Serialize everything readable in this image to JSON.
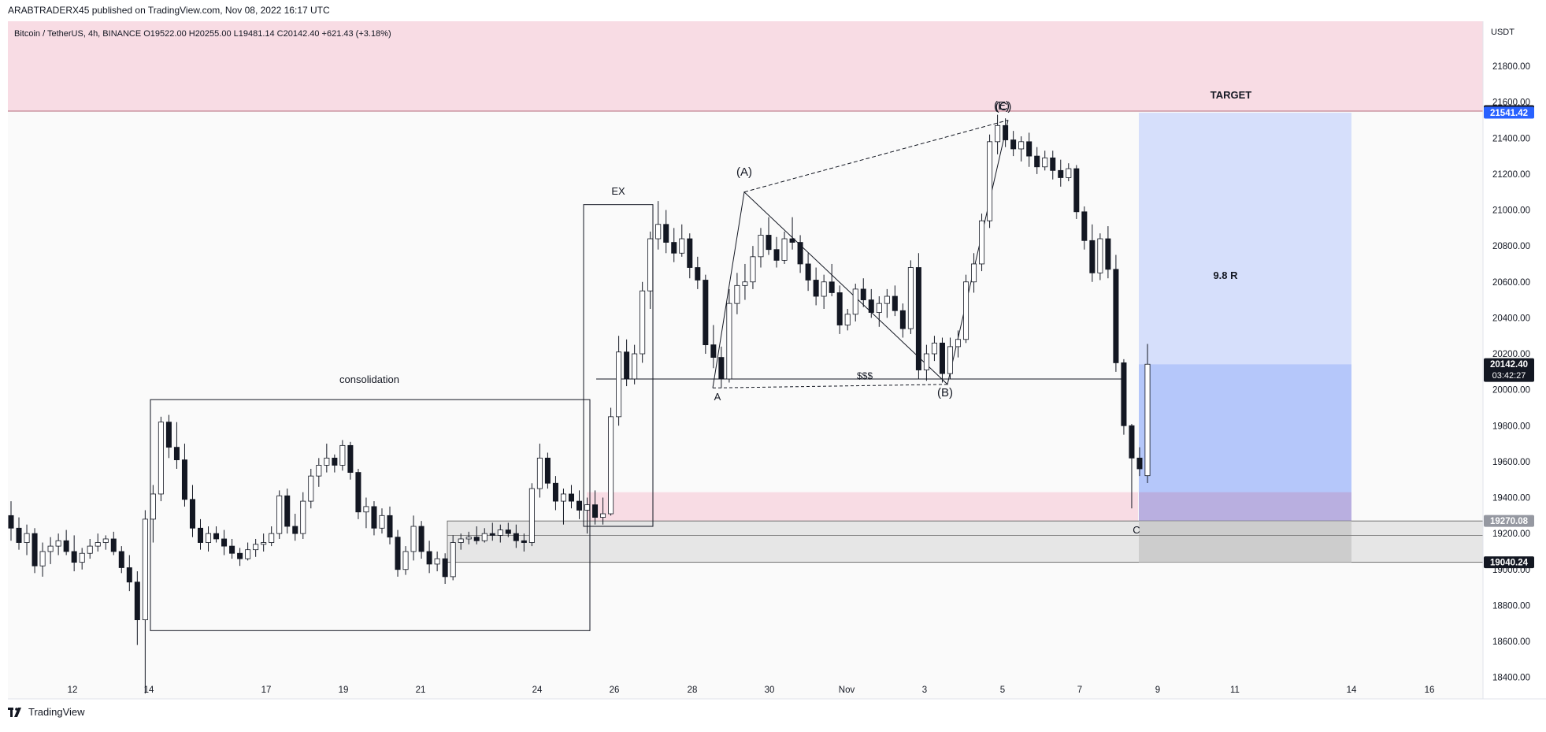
{
  "attribution": "ARABTRADERX45 published on TradingView.com, Nov 08, 2022 16:17 UTC",
  "symbol_line": "Bitcoin / TetherUS, 4h, BINANCE  O19522.00  H20255.00  L19481.14  C20142.40  +621.43 (+3.18%)",
  "footer_brand": "TradingView",
  "colors": {
    "up": "#ffffff",
    "down": "#131722",
    "pink_zone": "#f8dce4",
    "target_blue": "#d6dffb",
    "entry_blue": "#b5c7fa",
    "stop_grey": "#c8c8c8"
  },
  "chart_data": {
    "type": "candlestick",
    "title": "",
    "xlabel": "",
    "ylabel": "USDT",
    "ylim": [
      18280,
      22050
    ],
    "grid": false,
    "x_ticks": [
      "12",
      "14",
      "17",
      "19",
      "21",
      "24",
      "26",
      "28",
      "30",
      "Nov",
      "3",
      "5",
      "7",
      "9",
      "11",
      "14",
      "16"
    ],
    "y_ticks": [
      21800,
      21600,
      21400,
      21200,
      21000,
      20800,
      20600,
      20400,
      20200,
      20000,
      19800,
      19600,
      19400,
      19200,
      19000,
      18800,
      18600,
      18400
    ],
    "price_labels": [
      {
        "value": "21550.44",
        "style": "dark"
      },
      {
        "value": "21541.42",
        "style": "blue"
      },
      {
        "value": "20142.40",
        "sub": "03:42:27",
        "style": "dark"
      },
      {
        "value": "19270.08",
        "style": "grey"
      },
      {
        "value": "19040.24",
        "style": "dark"
      }
    ],
    "series": [
      {
        "candles": [
          [
            19300,
            19380,
            19160,
            19230
          ],
          [
            19230,
            19290,
            19110,
            19150
          ],
          [
            19150,
            19250,
            19080,
            19200
          ],
          [
            19200,
            19230,
            18980,
            19020
          ],
          [
            19020,
            19150,
            18960,
            19100
          ],
          [
            19100,
            19180,
            19030,
            19130
          ],
          [
            19130,
            19200,
            19080,
            19160
          ],
          [
            19160,
            19220,
            19080,
            19100
          ],
          [
            19100,
            19190,
            18990,
            19040
          ],
          [
            19040,
            19120,
            19000,
            19090
          ],
          [
            19090,
            19170,
            19060,
            19130
          ],
          [
            19130,
            19200,
            19100,
            19150
          ],
          [
            19150,
            19190,
            19110,
            19170
          ],
          [
            19170,
            19210,
            19080,
            19100
          ],
          [
            19100,
            19130,
            18980,
            19010
          ],
          [
            19010,
            19080,
            18880,
            18930
          ],
          [
            18930,
            18990,
            18580,
            18720
          ],
          [
            18720,
            19330,
            18310,
            19280
          ],
          [
            19280,
            19470,
            19150,
            19420
          ],
          [
            19420,
            19850,
            19380,
            19820
          ],
          [
            19820,
            19860,
            19620,
            19680
          ],
          [
            19680,
            19820,
            19560,
            19610
          ],
          [
            19610,
            19700,
            19350,
            19390
          ],
          [
            19390,
            19470,
            19180,
            19230
          ],
          [
            19230,
            19280,
            19110,
            19150
          ],
          [
            19150,
            19240,
            19100,
            19200
          ],
          [
            19200,
            19240,
            19150,
            19170
          ],
          [
            19170,
            19220,
            19080,
            19130
          ],
          [
            19130,
            19170,
            19060,
            19090
          ],
          [
            19090,
            19120,
            19020,
            19060
          ],
          [
            19060,
            19150,
            19050,
            19110
          ],
          [
            19110,
            19170,
            19070,
            19140
          ],
          [
            19140,
            19200,
            19100,
            19150
          ],
          [
            19150,
            19240,
            19130,
            19200
          ],
          [
            19200,
            19440,
            19170,
            19410
          ],
          [
            19410,
            19450,
            19200,
            19240
          ],
          [
            19240,
            19310,
            19160,
            19200
          ],
          [
            19200,
            19430,
            19170,
            19380
          ],
          [
            19380,
            19560,
            19340,
            19520
          ],
          [
            19520,
            19620,
            19460,
            19580
          ],
          [
            19580,
            19700,
            19540,
            19620
          ],
          [
            19620,
            19640,
            19540,
            19580
          ],
          [
            19580,
            19720,
            19550,
            19690
          ],
          [
            19690,
            19710,
            19500,
            19540
          ],
          [
            19540,
            19560,
            19280,
            19320
          ],
          [
            19320,
            19400,
            19230,
            19350
          ],
          [
            19350,
            19380,
            19190,
            19230
          ],
          [
            19230,
            19340,
            19200,
            19300
          ],
          [
            19300,
            19350,
            19140,
            19180
          ],
          [
            19180,
            19220,
            18960,
            19000
          ],
          [
            19000,
            19130,
            18970,
            19100
          ],
          [
            19100,
            19300,
            19050,
            19240
          ],
          [
            19240,
            19270,
            19060,
            19100
          ],
          [
            19100,
            19160,
            18980,
            19030
          ],
          [
            19030,
            19100,
            18990,
            19060
          ],
          [
            19060,
            19090,
            18920,
            18960
          ],
          [
            18960,
            19190,
            18940,
            19150
          ],
          [
            19150,
            19200,
            19110,
            19170
          ],
          [
            19170,
            19210,
            19140,
            19180
          ],
          [
            19180,
            19240,
            19140,
            19160
          ],
          [
            19160,
            19230,
            19150,
            19200
          ],
          [
            19200,
            19260,
            19160,
            19190
          ],
          [
            19190,
            19250,
            19150,
            19220
          ],
          [
            19220,
            19260,
            19180,
            19200
          ],
          [
            19200,
            19250,
            19120,
            19160
          ],
          [
            19160,
            19200,
            19100,
            19150
          ],
          [
            19150,
            19480,
            19130,
            19450
          ],
          [
            19450,
            19700,
            19400,
            19620
          ],
          [
            19620,
            19650,
            19450,
            19480
          ],
          [
            19480,
            19520,
            19330,
            19380
          ],
          [
            19380,
            19450,
            19250,
            19420
          ],
          [
            19420,
            19470,
            19340,
            19380
          ],
          [
            19380,
            19440,
            19280,
            19330
          ],
          [
            19330,
            19400,
            19200,
            19360
          ],
          [
            19360,
            19440,
            19250,
            19290
          ],
          [
            19290,
            19400,
            19250,
            19310
          ],
          [
            19310,
            19900,
            19300,
            19850
          ],
          [
            19850,
            20300,
            19800,
            20210
          ],
          [
            20210,
            20280,
            20020,
            20060
          ],
          [
            20060,
            20250,
            20030,
            20200
          ],
          [
            20200,
            20600,
            20150,
            20550
          ],
          [
            20550,
            20880,
            20450,
            20840
          ],
          [
            20840,
            21050,
            20780,
            20920
          ],
          [
            20920,
            21000,
            20760,
            20820
          ],
          [
            20820,
            20900,
            20710,
            20760
          ],
          [
            20760,
            20920,
            20740,
            20840
          ],
          [
            20840,
            20870,
            20620,
            20680
          ],
          [
            20680,
            20740,
            20560,
            20610
          ],
          [
            20610,
            20640,
            20200,
            20250
          ],
          [
            20250,
            20360,
            20120,
            20180
          ],
          [
            20180,
            20240,
            20010,
            20060
          ],
          [
            20060,
            20560,
            20040,
            20480
          ],
          [
            20480,
            20650,
            20420,
            20580
          ],
          [
            20580,
            20700,
            20500,
            20600
          ],
          [
            20600,
            20800,
            20560,
            20740
          ],
          [
            20740,
            20900,
            20680,
            20860
          ],
          [
            20860,
            20960,
            20750,
            20780
          ],
          [
            20780,
            20850,
            20680,
            20720
          ],
          [
            20720,
            20880,
            20700,
            20840
          ],
          [
            20840,
            20960,
            20780,
            20820
          ],
          [
            20820,
            20860,
            20650,
            20700
          ],
          [
            20700,
            20760,
            20550,
            20610
          ],
          [
            20610,
            20680,
            20470,
            20520
          ],
          [
            20520,
            20640,
            20450,
            20600
          ],
          [
            20600,
            20700,
            20520,
            20540
          ],
          [
            20540,
            20580,
            20310,
            20360
          ],
          [
            20360,
            20450,
            20330,
            20420
          ],
          [
            20420,
            20590,
            20380,
            20560
          ],
          [
            20560,
            20620,
            20460,
            20500
          ],
          [
            20500,
            20560,
            20400,
            20430
          ],
          [
            20430,
            20520,
            20350,
            20480
          ],
          [
            20480,
            20560,
            20400,
            20520
          ],
          [
            20520,
            20580,
            20410,
            20440
          ],
          [
            20440,
            20480,
            20290,
            20340
          ],
          [
            20340,
            20720,
            20310,
            20680
          ],
          [
            20680,
            20760,
            20060,
            20110
          ],
          [
            20110,
            20250,
            20050,
            20200
          ],
          [
            20200,
            20300,
            20160,
            20260
          ],
          [
            20260,
            20290,
            20040,
            20090
          ],
          [
            20090,
            20290,
            20060,
            20240
          ],
          [
            20240,
            20330,
            20180,
            20280
          ],
          [
            20280,
            20640,
            20260,
            20600
          ],
          [
            20600,
            20760,
            20540,
            20700
          ],
          [
            20700,
            20980,
            20660,
            20940
          ],
          [
            20940,
            21420,
            20900,
            21380
          ],
          [
            21380,
            21530,
            21310,
            21470
          ],
          [
            21470,
            21510,
            21350,
            21390
          ],
          [
            21390,
            21440,
            21300,
            21340
          ],
          [
            21340,
            21410,
            21270,
            21380
          ],
          [
            21380,
            21430,
            21240,
            21300
          ],
          [
            21300,
            21350,
            21200,
            21240
          ],
          [
            21240,
            21330,
            21220,
            21290
          ],
          [
            21290,
            21330,
            21170,
            21220
          ],
          [
            21220,
            21280,
            21130,
            21180
          ],
          [
            21180,
            21260,
            21160,
            21230
          ],
          [
            21230,
            21250,
            20950,
            20990
          ],
          [
            20990,
            21020,
            20780,
            20830
          ],
          [
            20830,
            20920,
            20600,
            20650
          ],
          [
            20650,
            20870,
            20610,
            20840
          ],
          [
            20840,
            20910,
            20620,
            20670
          ],
          [
            20670,
            20750,
            20100,
            20150
          ],
          [
            20150,
            20170,
            19750,
            19800
          ],
          [
            19800,
            19810,
            19340,
            19620
          ],
          [
            19620,
            19680,
            19520,
            19560
          ],
          [
            19522,
            20255,
            19481,
            20142
          ]
        ]
      }
    ]
  },
  "annotations": {
    "consolidation": "consolidation",
    "ex": "EX",
    "wave_a": "(A)",
    "wave_b": "(B)",
    "wave_c": "(C)",
    "wave_e": "(E)",
    "point_a": "A",
    "point_c": "C",
    "liquidity": "$$$",
    "target": "TARGET",
    "ratio": "9.8 R"
  }
}
